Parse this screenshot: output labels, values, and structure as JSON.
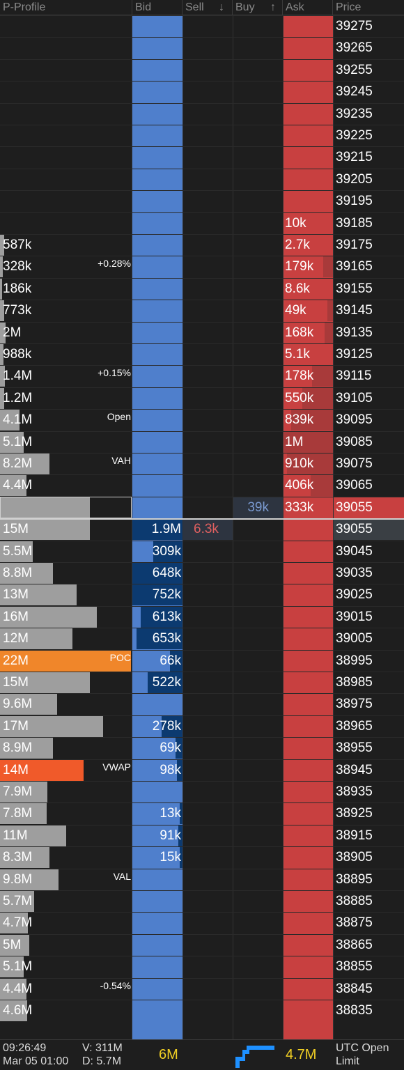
{
  "header": {
    "profile": "P-Profile",
    "bid": "Bid",
    "sell": "Sell",
    "sell_arrow": "↓",
    "buy": "Buy",
    "buy_arrow": "↑",
    "ask": "Ask",
    "price": "Price"
  },
  "colors": {
    "bid": "#4f7fcc",
    "bid_fill": "#0c3a70",
    "ask": "#c84040",
    "profile_bar": "#9e9e9e",
    "poc": "#f0862a",
    "vwap": "#f05a2a",
    "footer_value": "#f2d024"
  },
  "rows": [
    {
      "price": "39275"
    },
    {
      "price": "39265"
    },
    {
      "price": "39255"
    },
    {
      "price": "39245"
    },
    {
      "price": "39235"
    },
    {
      "price": "39225"
    },
    {
      "price": "39215"
    },
    {
      "price": "39205"
    },
    {
      "price": "39195"
    },
    {
      "price": "39185",
      "ask": "10k"
    },
    {
      "price": "39175",
      "profile": "587k",
      "ask": "2.7k"
    },
    {
      "price": "39165",
      "profile": "328k",
      "marker": "+0.28%",
      "ask": "179k"
    },
    {
      "price": "39155",
      "profile": "186k",
      "ask": "8.6k"
    },
    {
      "price": "39145",
      "profile": "773k",
      "ask": "49k"
    },
    {
      "price": "39135",
      "profile": "2M",
      "ask": "168k"
    },
    {
      "price": "39125",
      "profile": "988k",
      "ask": "5.1k"
    },
    {
      "price": "39115",
      "profile": "1.4M",
      "marker": "+0.15%",
      "ask": "178k"
    },
    {
      "price": "39105",
      "profile": "1.2M",
      "ask": "550k"
    },
    {
      "price": "39095",
      "profile": "4.1M",
      "marker": "Open",
      "ask": "839k"
    },
    {
      "price": "39085",
      "profile": "5.1M",
      "ask": "1M"
    },
    {
      "price": "39075",
      "profile": "8.2M",
      "marker": "VAH",
      "ask": "910k"
    },
    {
      "price": "39065",
      "profile": "4.4M",
      "ask": "406k"
    },
    {
      "price": "39055",
      "buy": "39k",
      "ask": "333k"
    },
    {
      "price": "39055",
      "profile": "15M",
      "bid": "1.9M",
      "sell": "6.3k"
    },
    {
      "price": "39045",
      "profile": "5.5M",
      "bid": "309k"
    },
    {
      "price": "39035",
      "profile": "8.8M",
      "bid": "648k"
    },
    {
      "price": "39025",
      "profile": "13M",
      "bid": "752k"
    },
    {
      "price": "39015",
      "profile": "16M",
      "bid": "613k"
    },
    {
      "price": "39005",
      "profile": "12M",
      "bid": "653k"
    },
    {
      "price": "38995",
      "profile": "22M",
      "marker": "POC",
      "bid": "66k"
    },
    {
      "price": "38985",
      "profile": "15M",
      "bid": "522k"
    },
    {
      "price": "38975",
      "profile": "9.6M"
    },
    {
      "price": "38965",
      "profile": "17M",
      "bid": "278k"
    },
    {
      "price": "38955",
      "profile": "8.9M",
      "bid": "69k"
    },
    {
      "price": "38945",
      "profile": "14M",
      "marker": "VWAP",
      "bid": "98k"
    },
    {
      "price": "38935",
      "profile": "7.9M"
    },
    {
      "price": "38925",
      "profile": "7.8M",
      "bid": "13k"
    },
    {
      "price": "38915",
      "profile": "11M",
      "bid": "91k"
    },
    {
      "price": "38905",
      "profile": "8.3M",
      "bid": "15k"
    },
    {
      "price": "38895",
      "profile": "9.8M",
      "marker": "VAL"
    },
    {
      "price": "38885",
      "profile": "5.7M"
    },
    {
      "price": "38875",
      "profile": "4.7M"
    },
    {
      "price": "38865",
      "profile": "5M"
    },
    {
      "price": "38855",
      "profile": "5.1M"
    },
    {
      "price": "38845",
      "profile": "4.4M",
      "marker": "-0.54%"
    },
    {
      "price": "38835",
      "profile": "4.6M"
    }
  ],
  "footer": {
    "time": "09:26:49",
    "date": "Mar 05 01:00",
    "volume": "V: 311M",
    "delta": "D: 5.7M",
    "bid_total": "6M",
    "ask_total": "4.7M",
    "session_line1": "UTC Open",
    "session_line2": "Limit"
  }
}
